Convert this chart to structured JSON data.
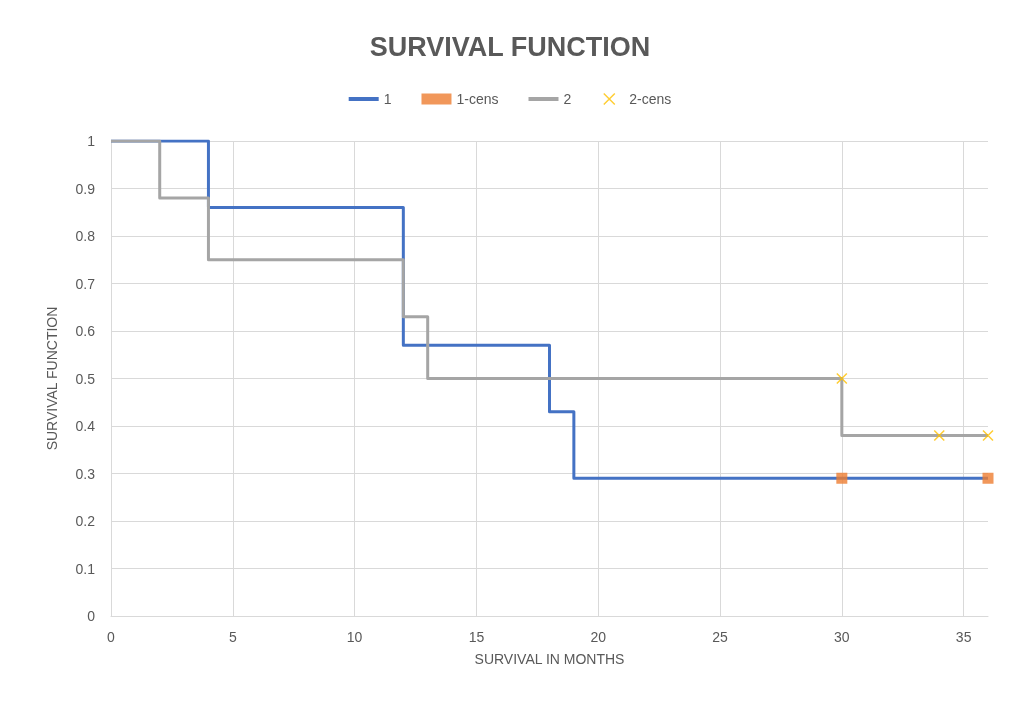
{
  "chart_data": {
    "type": "step",
    "title": "SURVIVAL FUNCTION",
    "xlabel": "SURVIVAL IN MONTHS",
    "ylabel": "SURVIVAL FUNCTION",
    "xlim": [
      0,
      36
    ],
    "xticks": [
      0,
      5,
      10,
      15,
      20,
      25,
      30,
      35
    ],
    "ylim": [
      0,
      1
    ],
    "yticks": [
      0,
      0.1,
      0.2,
      0.3,
      0.4,
      0.5,
      0.6,
      0.7,
      0.8,
      0.9,
      1
    ],
    "grid": true,
    "legend": "top",
    "line_style": "solid",
    "series": [
      {
        "name": "1",
        "color": "#4472c4",
        "marker": "none",
        "x": [
          0,
          4,
          12,
          18,
          19,
          36
        ],
        "values": [
          1,
          0.86,
          0.57,
          0.43,
          0.29,
          0.29
        ]
      },
      {
        "name": "1-cens",
        "type": "scatter",
        "color": "#ed7d31",
        "marker": "square",
        "x": [
          30,
          36
        ],
        "values": [
          0.29,
          0.29
        ]
      },
      {
        "name": "2",
        "color": "#a5a5a5",
        "marker": "none",
        "x": [
          0,
          2,
          4,
          12,
          13,
          30,
          36
        ],
        "values": [
          1,
          0.88,
          0.75,
          0.63,
          0.5,
          0.38,
          0.38
        ]
      },
      {
        "name": "2-cens",
        "type": "scatter",
        "color": "#ffc000",
        "marker": "cross",
        "x": [
          30,
          34,
          36
        ],
        "values": [
          0.5,
          0.38,
          0.38
        ]
      }
    ]
  }
}
